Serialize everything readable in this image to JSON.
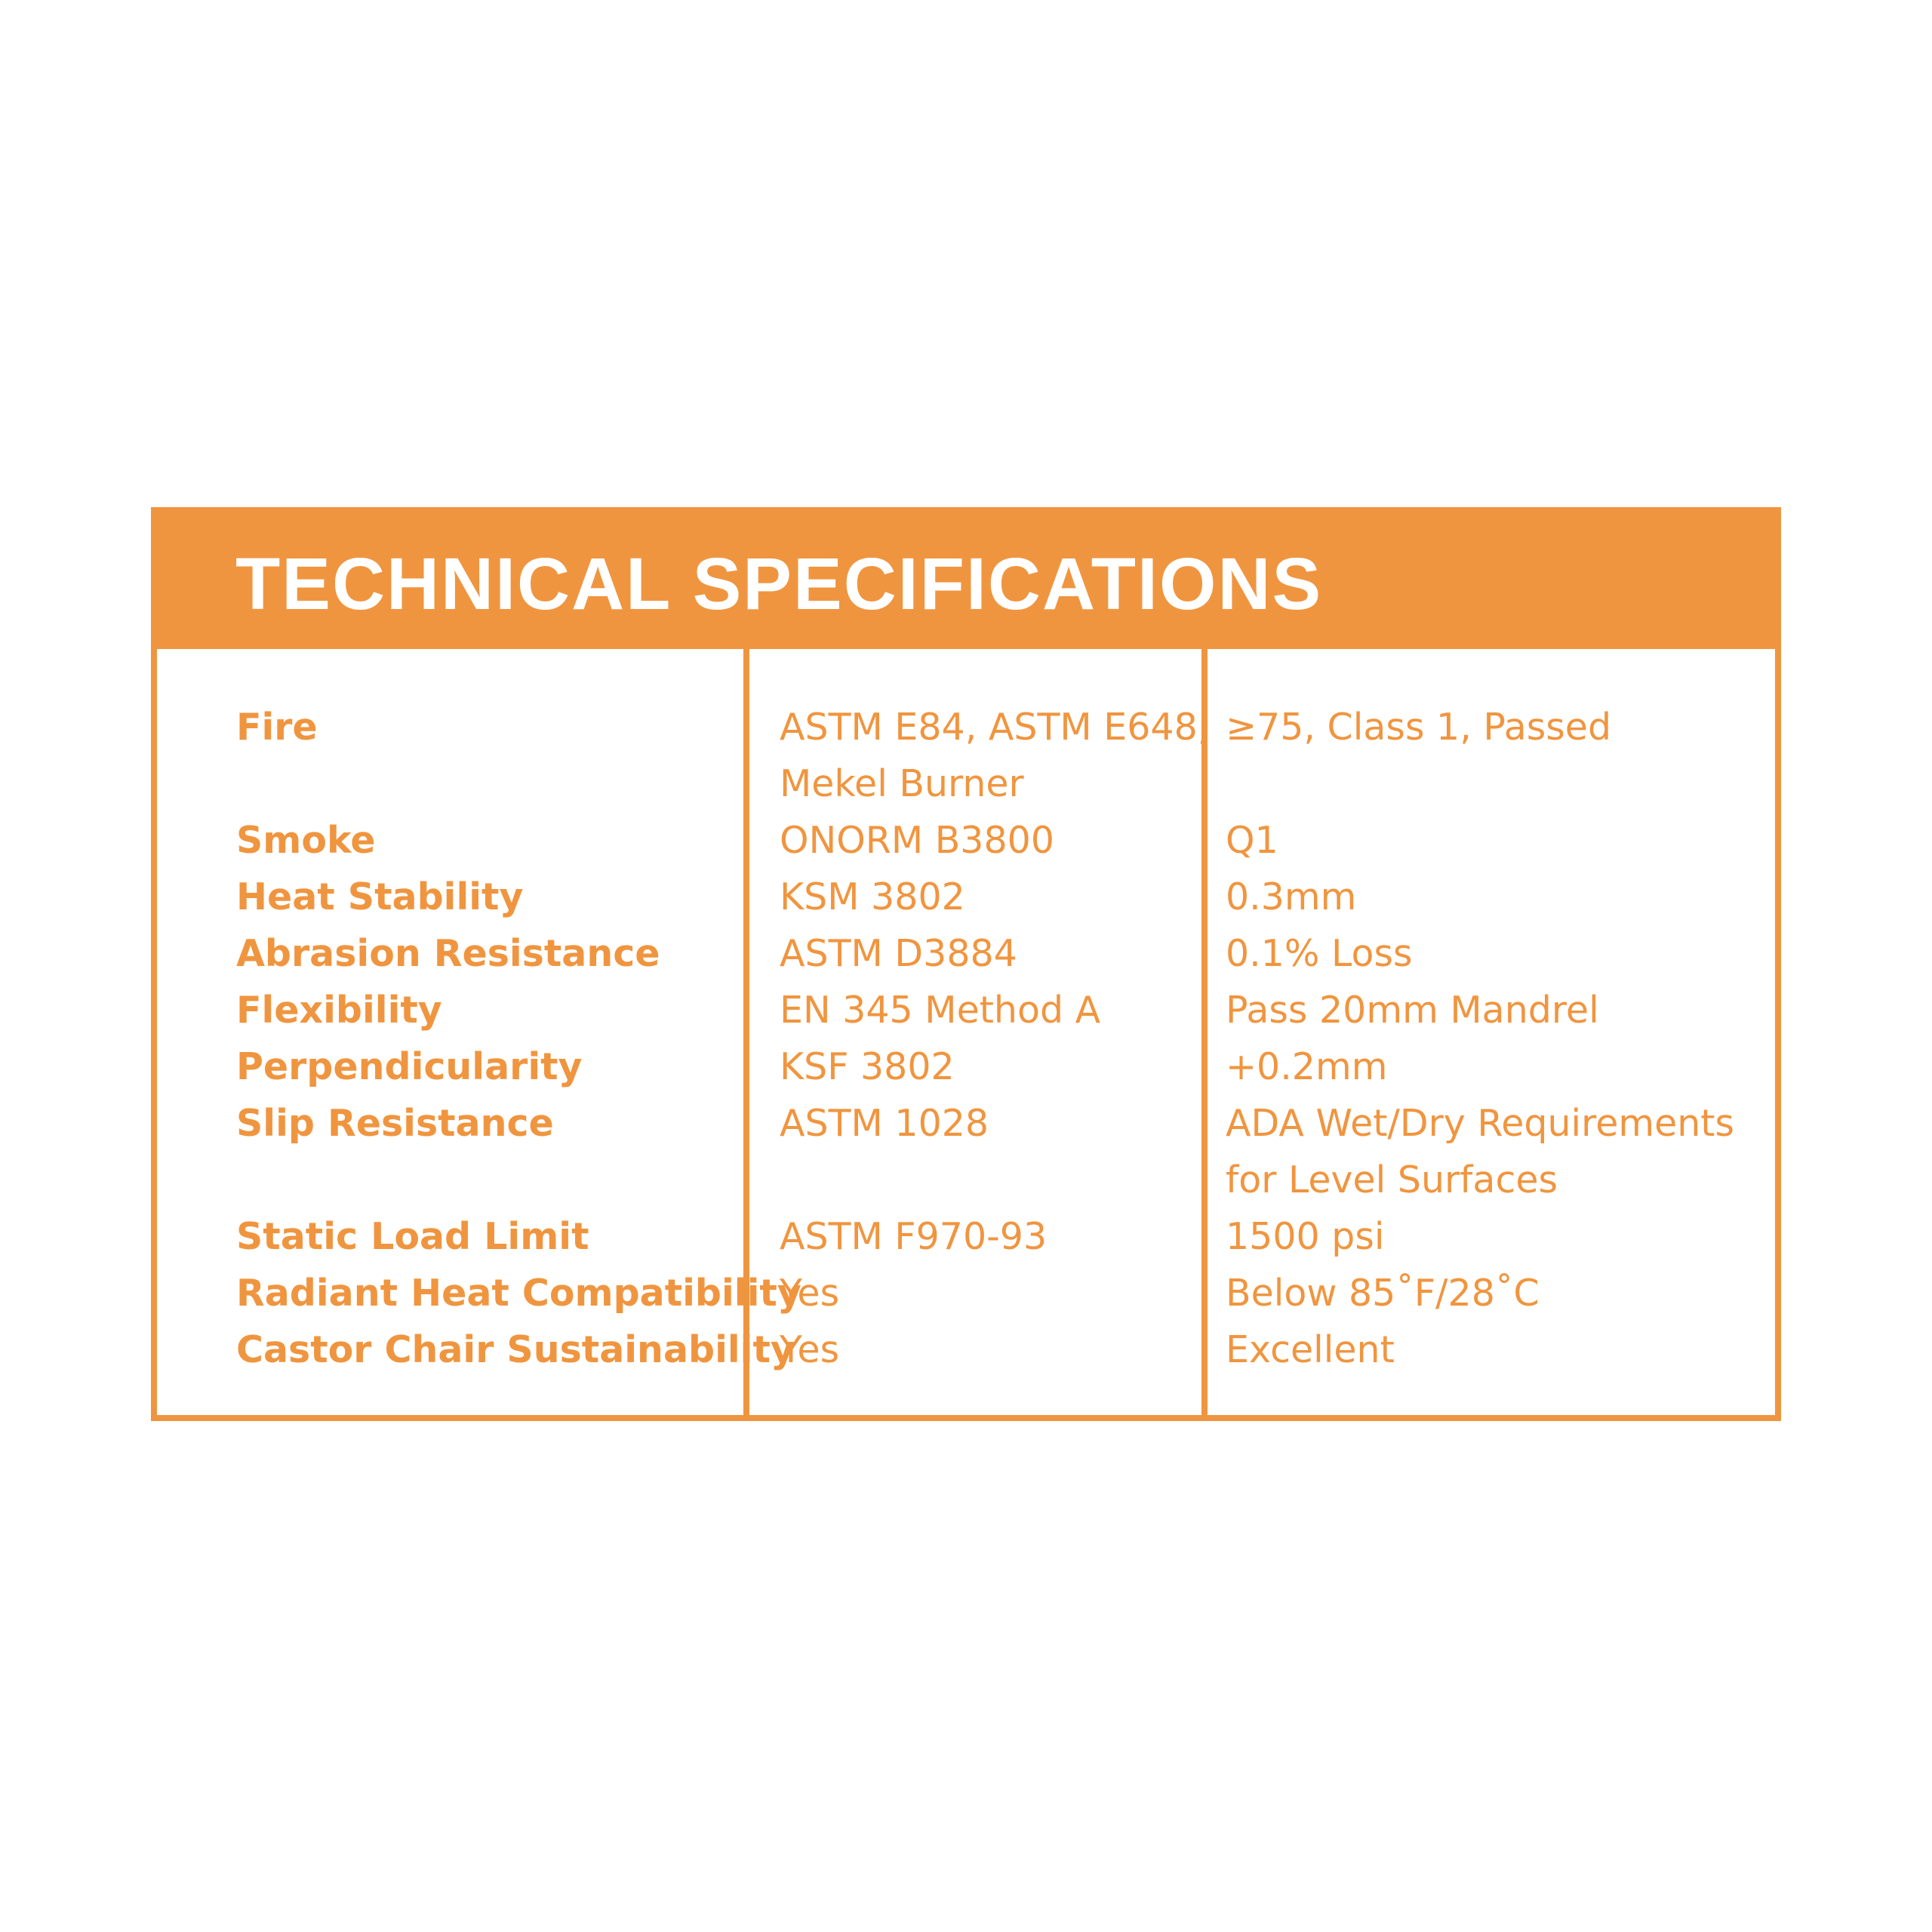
{
  "colors": {
    "accent_orange": "#F0953F",
    "header_text": "#FFFFFF",
    "page_background": "#FFFFFF"
  },
  "header": {
    "title": "TECHNICAL SPECIFICATIONS"
  },
  "table": {
    "columns": [
      "property",
      "standard",
      "result"
    ],
    "rows": [
      {
        "property": "Fire",
        "standard": "ASTM E84, ASTM E648,",
        "result": "≥75, Class 1, Passed"
      },
      {
        "property": "",
        "standard": "Mekel Burner",
        "result": ""
      },
      {
        "property": "Smoke",
        "standard": "ONORM B3800",
        "result": "Q1"
      },
      {
        "property": "Heat Stability",
        "standard": "KSM 3802",
        "result": "0.3mm"
      },
      {
        "property": "Abrasion Resistance",
        "standard": "ASTM D3884",
        "result": "0.1% Loss"
      },
      {
        "property": "Flexibility",
        "standard": "EN 345 Method A",
        "result": "Pass 20mm Mandrel"
      },
      {
        "property": "Perpendicularity",
        "standard": "KSF 3802",
        "result": "+0.2mm"
      },
      {
        "property": "Slip Resistance",
        "standard": "ASTM 1028",
        "result": "ADA Wet/Dry Requirements"
      },
      {
        "property": "",
        "standard": "",
        "result": "for Level Surfaces"
      },
      {
        "property": "Static Load Limit",
        "standard": "ASTM F970-93",
        "result": "1500 psi"
      },
      {
        "property": "Radiant Heat Compatibility",
        "standard": "Yes",
        "result": "Below 85˚F/28˚C"
      },
      {
        "property": "Castor Chair Sustainability",
        "standard": "Yes",
        "result": "Excellent"
      }
    ]
  }
}
